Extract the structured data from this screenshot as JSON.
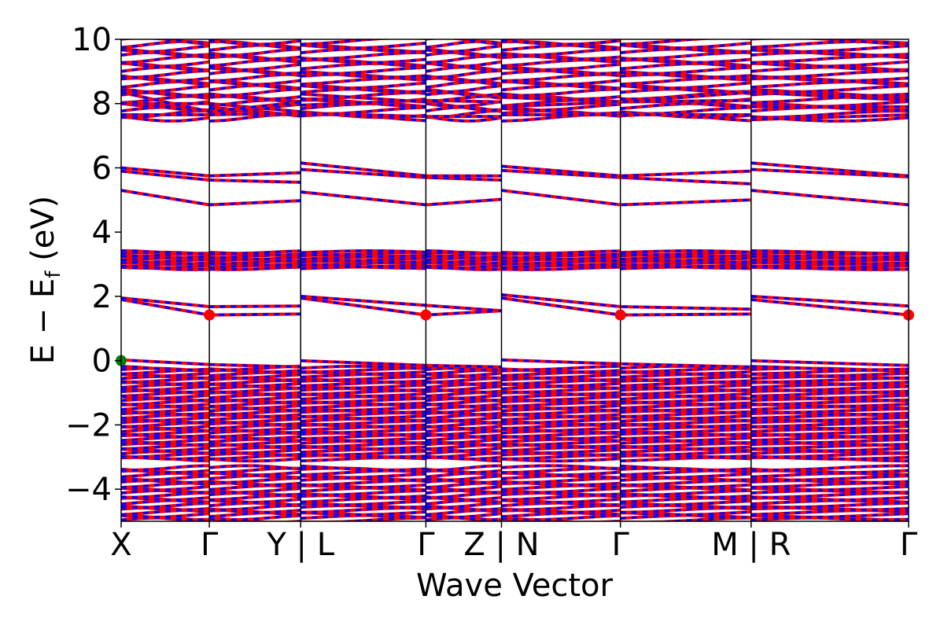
{
  "chart_data": {
    "type": "line",
    "title": "",
    "xlabel": "Wave Vector",
    "ylabel": "E − E",
    "ylabel_sub": "f",
    "ylabel_unit": " (eV)",
    "ylim": [
      -5,
      10
    ],
    "yticks": [
      -4,
      -2,
      0,
      2,
      4,
      6,
      8,
      10
    ],
    "ytick_labels": [
      "−4",
      "−2",
      "0",
      "2",
      "4",
      "6",
      "8",
      "10"
    ],
    "x_range": [
      0,
      1
    ],
    "segment_boundaries": [
      0,
      0.112,
      0.228,
      0.387,
      0.483,
      0.634,
      0.8,
      1.0
    ],
    "segment_dividers": [
      0.228,
      0.483,
      0.8
    ],
    "gamma_lines": [
      0.112,
      0.387,
      0.634
    ],
    "xticks": [
      {
        "x": 0.0,
        "label": "X"
      },
      {
        "x": 0.112,
        "label": "Γ"
      },
      {
        "x": 0.228,
        "label": "Y | L"
      },
      {
        "x": 0.387,
        "label": "Γ"
      },
      {
        "x": 0.483,
        "label": "Z | N"
      },
      {
        "x": 0.634,
        "label": "Γ"
      },
      {
        "x": 0.8,
        "label": "M | R"
      },
      {
        "x": 1.0,
        "label": "Γ"
      }
    ],
    "series": [
      {
        "color": "#ff0000",
        "style": "solid"
      },
      {
        "color": "#0000ff",
        "style": "dashed"
      }
    ],
    "band_groups": [
      {
        "lo": -5.0,
        "hi": -3.3,
        "count": 22
      },
      {
        "lo": -3.1,
        "hi": -0.2,
        "count": 46
      },
      {
        "lo": 2.85,
        "hi": 3.4,
        "count": 12
      },
      {
        "lo": 7.5,
        "hi": 10.0,
        "count": 22
      }
    ],
    "bands": [
      {
        "name": "vbm",
        "points": [
          [
            0,
            0.02
          ],
          [
            0.112,
            -0.12
          ],
          [
            0.228,
            -0.2
          ],
          [
            0.228,
            0.0
          ],
          [
            0.387,
            -0.15
          ],
          [
            0.483,
            -0.2
          ],
          [
            0.483,
            0.02
          ],
          [
            0.634,
            -0.1
          ],
          [
            0.8,
            -0.2
          ],
          [
            0.8,
            0.0
          ],
          [
            1.0,
            -0.15
          ]
        ]
      },
      {
        "name": "cb1",
        "points": [
          [
            0,
            1.9
          ],
          [
            0.112,
            1.42
          ],
          [
            0.228,
            1.45
          ],
          [
            0.228,
            1.95
          ],
          [
            0.387,
            1.42
          ],
          [
            0.483,
            1.55
          ],
          [
            0.483,
            1.95
          ],
          [
            0.634,
            1.42
          ],
          [
            0.8,
            1.45
          ],
          [
            0.8,
            1.9
          ],
          [
            1.0,
            1.42
          ]
        ]
      },
      {
        "name": "cb2",
        "points": [
          [
            0,
            1.95
          ],
          [
            0.112,
            1.68
          ],
          [
            0.228,
            1.7
          ],
          [
            0.228,
            2.0
          ],
          [
            0.387,
            1.72
          ],
          [
            0.483,
            1.55
          ],
          [
            0.483,
            2.05
          ],
          [
            0.634,
            1.68
          ],
          [
            0.8,
            1.6
          ],
          [
            0.8,
            2.0
          ],
          [
            1.0,
            1.7
          ]
        ]
      },
      {
        "name": "cb3",
        "points": [
          [
            0,
            5.3
          ],
          [
            0.112,
            4.85
          ],
          [
            0.228,
            4.98
          ],
          [
            0.228,
            5.25
          ],
          [
            0.387,
            4.85
          ],
          [
            0.483,
            5.02
          ],
          [
            0.483,
            5.3
          ],
          [
            0.634,
            4.85
          ],
          [
            0.8,
            5.0
          ],
          [
            0.8,
            5.3
          ],
          [
            1.0,
            4.85
          ]
        ]
      },
      {
        "name": "cb4",
        "points": [
          [
            0,
            5.9
          ],
          [
            0.112,
            5.62
          ],
          [
            0.228,
            5.55
          ],
          [
            0.228,
            5.95
          ],
          [
            0.387,
            5.7
          ],
          [
            0.483,
            5.62
          ],
          [
            0.483,
            5.92
          ],
          [
            0.634,
            5.7
          ],
          [
            0.8,
            5.5
          ],
          [
            0.8,
            5.95
          ],
          [
            1.0,
            5.72
          ]
        ]
      },
      {
        "name": "cb5",
        "points": [
          [
            0,
            6.0
          ],
          [
            0.112,
            5.75
          ],
          [
            0.228,
            5.85
          ],
          [
            0.228,
            6.15
          ],
          [
            0.387,
            5.75
          ],
          [
            0.483,
            5.75
          ],
          [
            0.483,
            6.05
          ],
          [
            0.634,
            5.75
          ],
          [
            0.8,
            5.9
          ],
          [
            0.8,
            6.15
          ],
          [
            1.0,
            5.75
          ]
        ]
      },
      {
        "name": "cb6",
        "points": [
          [
            0,
            7.65
          ],
          [
            0.112,
            7.65
          ],
          [
            0.228,
            7.7
          ],
          [
            0.228,
            7.7
          ],
          [
            0.387,
            7.6
          ],
          [
            0.483,
            7.6
          ],
          [
            0.483,
            7.65
          ],
          [
            0.634,
            7.65
          ],
          [
            0.8,
            7.65
          ],
          [
            0.8,
            7.5
          ],
          [
            1.0,
            7.65
          ]
        ]
      },
      {
        "name": "cb7",
        "points": [
          [
            0,
            8.0
          ],
          [
            0.112,
            8.0
          ],
          [
            0.228,
            7.75
          ],
          [
            0.228,
            7.95
          ],
          [
            0.387,
            8.1
          ],
          [
            0.483,
            8.05
          ],
          [
            0.483,
            7.9
          ],
          [
            0.634,
            8.05
          ],
          [
            0.8,
            8.1
          ],
          [
            0.8,
            7.9
          ],
          [
            1.0,
            7.9
          ]
        ]
      },
      {
        "name": "cb8",
        "points": [
          [
            0,
            8.35
          ],
          [
            0.112,
            7.75
          ],
          [
            0.228,
            8.05
          ],
          [
            0.228,
            8.3
          ],
          [
            0.387,
            8.05
          ],
          [
            0.483,
            8.3
          ],
          [
            0.483,
            8.2
          ],
          [
            0.634,
            8.05
          ],
          [
            0.8,
            8.35
          ],
          [
            0.8,
            8.35
          ],
          [
            1.0,
            8.1
          ]
        ]
      }
    ],
    "markers": [
      {
        "x": 0.0,
        "y": 0.0,
        "color": "#008000",
        "label": "VBM"
      },
      {
        "x": 0.112,
        "y": 1.42,
        "color": "#ff0000",
        "label": "CBM"
      },
      {
        "x": 0.387,
        "y": 1.42,
        "color": "#ff0000",
        "label": "CBM"
      },
      {
        "x": 0.634,
        "y": 1.42,
        "color": "#ff0000",
        "label": "CBM"
      },
      {
        "x": 1.0,
        "y": 1.42,
        "color": "#ff0000",
        "label": "CBM"
      }
    ]
  }
}
